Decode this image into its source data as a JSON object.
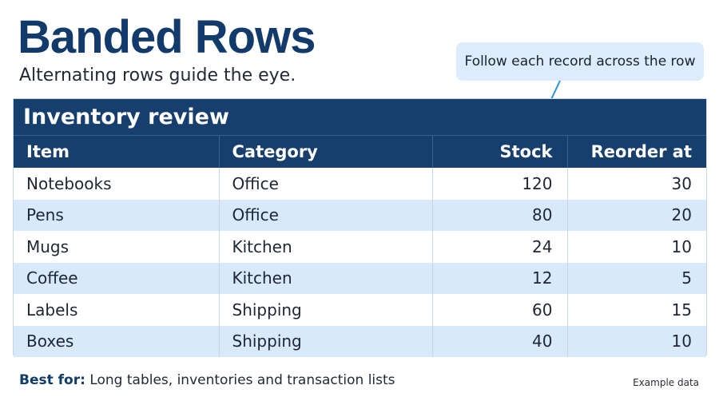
{
  "header": {
    "title": "Banded Rows",
    "subtitle": "Alternating rows guide the eye."
  },
  "callout": {
    "text": "Follow each record across the row"
  },
  "table": {
    "title": "Inventory review",
    "columns": [
      "Item",
      "Category",
      "Stock",
      "Reorder at"
    ],
    "rows": [
      [
        "Notebooks",
        "Office",
        "120",
        "30"
      ],
      [
        "Pens",
        "Office",
        "80",
        "20"
      ],
      [
        "Mugs",
        "Kitchen",
        "24",
        "10"
      ],
      [
        "Coffee",
        "Kitchen",
        "12",
        "5"
      ],
      [
        "Labels",
        "Shipping",
        "60",
        "15"
      ],
      [
        "Boxes",
        "Shipping",
        "40",
        "10"
      ]
    ]
  },
  "footer": {
    "lead": "Best for:",
    "text": " Long tables, inventories and transaction lists",
    "source": "Example data"
  },
  "colors": {
    "header_bg": "#173f6e",
    "band": "#d8e9fa",
    "title": "#123a6b",
    "callout_bg": "#dcecfb",
    "arrow": "#2f8fd8"
  }
}
